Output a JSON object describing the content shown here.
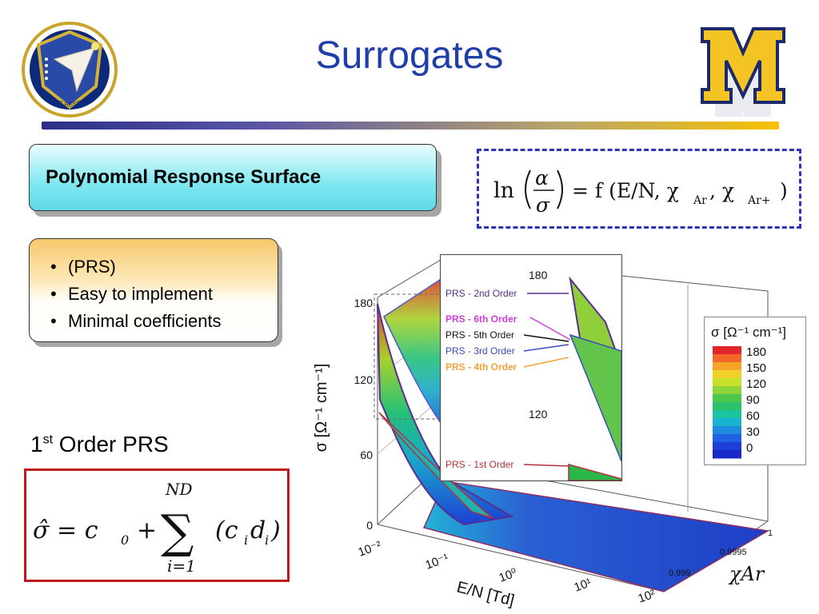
{
  "header": {
    "title": "Surrogates",
    "left_logo_name": "air-force-research-laboratory-logo",
    "left_logo_text": "AIR FORCE RESEARCH LABORATORY",
    "right_logo_name": "michigan-block-m-logo",
    "right_logo_text": "M",
    "bar_colors": [
      "#2a2f86",
      "#f6c100"
    ]
  },
  "prs_box": {
    "label": "Polynomial Response Surface"
  },
  "equation_top": {
    "lhs": "ln",
    "num": "α",
    "den": "σ",
    "rhs": "= f (E/N, χ",
    "sub1": "Ar",
    "sep": ", χ",
    "sub2": "Ar+",
    "close": ")"
  },
  "bullets": [
    "(PRS)",
    "Easy to implement",
    "Minimal coefficients"
  ],
  "first_order": {
    "num": "1",
    "sup": "st",
    "rest": " Order PRS"
  },
  "formula": {
    "lhs": "σ̂ = c",
    "c_sub": "0",
    "plus": "+",
    "upper": "ND",
    "sigma": "∑",
    "lower": "i=1",
    "term": "(c",
    "i1": "i",
    "d": "d",
    "i2": "i",
    "close": ")"
  },
  "chart_data": {
    "type": "surface",
    "z_label": "σ [Ω⁻¹ cm⁻¹]",
    "z_ticks": [
      "0",
      "60",
      "120",
      "180"
    ],
    "x_label": "E/N [Td]",
    "x_ticks": [
      "10⁻²",
      "10⁻¹",
      "10⁰",
      "10¹",
      "10²"
    ],
    "y_label": "χAr",
    "y_ticks": [
      "0.999",
      "0.9995",
      "1"
    ],
    "legend_title": "σ [Ω⁻¹ cm⁻¹]",
    "legend_levels": [
      "180",
      "150",
      "120",
      "90",
      "60",
      "30",
      "0"
    ],
    "zoom_inset": {
      "top_label": "180",
      "mid_label": "120",
      "series": [
        {
          "label": "PRS - 2nd Order",
          "color": "#5b2d8e"
        },
        {
          "label": "PRS - 6th Order",
          "color": "#cf3fd6"
        },
        {
          "label": "PRS - 5th Order",
          "color": "#111111"
        },
        {
          "label": "PRS - 3rd Order",
          "color": "#3a4bc4"
        },
        {
          "label": "PRS - 4th Order",
          "color": "#f0a23a"
        },
        {
          "label": "PRS - 1st Order",
          "color": "#b2323a"
        }
      ]
    }
  }
}
